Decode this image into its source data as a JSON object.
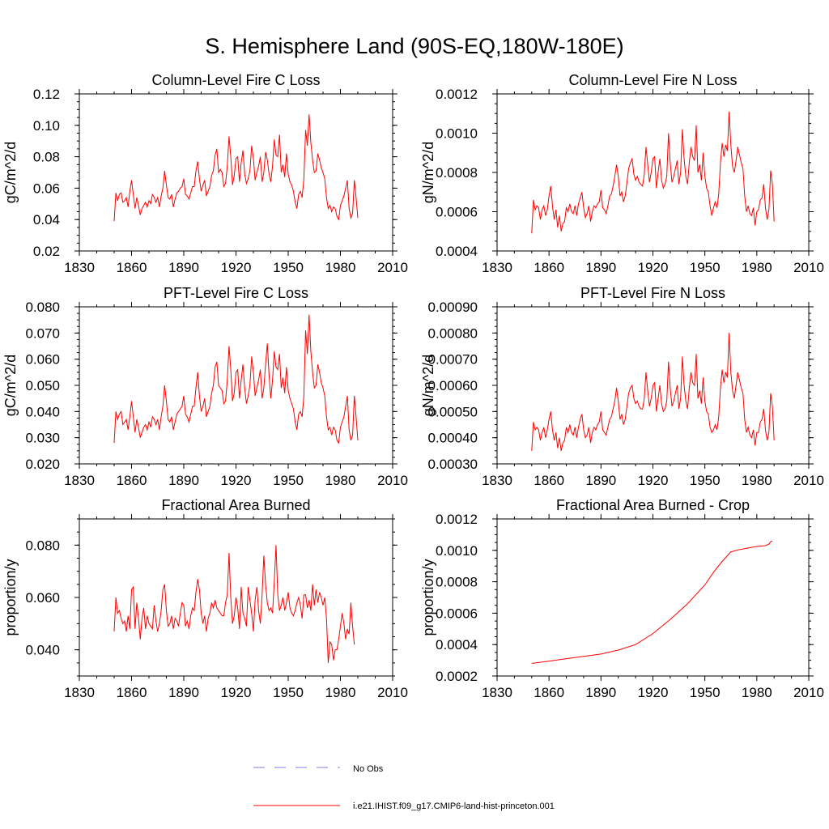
{
  "figure": {
    "title": "S. Hemisphere Land (90S-EQ,180W-180E)"
  },
  "legend": {
    "entries": [
      {
        "label": "No Obs",
        "color": "#7f7fdf",
        "style": "dashed"
      },
      {
        "label": "i.e21.IHIST.f09_g17.CMIP6-land-hist-princeton.001",
        "color": "#ff0000",
        "style": "solid"
      }
    ]
  },
  "chart_data": [
    {
      "type": "line",
      "title": "Column-Level Fire C Loss",
      "ylabel": "gC/m^2/d",
      "xlabel": "",
      "xlim": [
        1830,
        2010
      ],
      "ylim": [
        0.02,
        0.12
      ],
      "xticks": [
        "1830",
        "1860",
        "1890",
        "1920",
        "1950",
        "1980",
        "2010"
      ],
      "yticks": [
        "0.02",
        "0.04",
        "0.06",
        "0.08",
        "0.10",
        "0.12"
      ],
      "series": [
        {
          "color": "#ff0000",
          "x_start": 1850,
          "values": [
            0.039,
            0.057,
            0.052,
            0.056,
            0.057,
            0.051,
            0.052,
            0.054,
            0.048,
            0.058,
            0.065,
            0.056,
            0.047,
            0.054,
            0.049,
            0.043,
            0.047,
            0.049,
            0.051,
            0.048,
            0.052,
            0.05,
            0.056,
            0.054,
            0.051,
            0.054,
            0.048,
            0.055,
            0.06,
            0.071,
            0.062,
            0.054,
            0.053,
            0.056,
            0.048,
            0.053,
            0.057,
            0.058,
            0.06,
            0.061,
            0.066,
            0.056,
            0.055,
            0.053,
            0.057,
            0.061,
            0.061,
            0.071,
            0.077,
            0.066,
            0.058,
            0.062,
            0.065,
            0.055,
            0.058,
            0.061,
            0.068,
            0.071,
            0.081,
            0.085,
            0.07,
            0.072,
            0.07,
            0.061,
            0.063,
            0.074,
            0.093,
            0.08,
            0.062,
            0.068,
            0.079,
            0.08,
            0.064,
            0.076,
            0.084,
            0.069,
            0.063,
            0.066,
            0.071,
            0.087,
            0.079,
            0.065,
            0.07,
            0.074,
            0.08,
            0.064,
            0.07,
            0.083,
            0.078,
            0.069,
            0.064,
            0.074,
            0.091,
            0.081,
            0.08,
            0.094,
            0.07,
            0.075,
            0.067,
            0.082,
            0.069,
            0.064,
            0.062,
            0.058,
            0.051,
            0.047,
            0.056,
            0.058,
            0.054,
            0.066,
            0.097,
            0.087,
            0.107,
            0.089,
            0.078,
            0.07,
            0.071,
            0.082,
            0.078,
            0.073,
            0.07,
            0.066,
            0.054,
            0.047,
            0.049,
            0.045,
            0.048,
            0.047,
            0.042,
            0.04,
            0.049,
            0.052,
            0.055,
            0.06,
            0.065,
            0.047,
            0.041,
            0.044,
            0.065,
            0.054,
            0.041
          ]
        }
      ]
    },
    {
      "type": "line",
      "title": "Column-Level Fire N Loss",
      "ylabel": "gN/m^2/d",
      "xlabel": "",
      "xlim": [
        1830,
        2010
      ],
      "ylim": [
        0.0004,
        0.0012
      ],
      "xticks": [
        "1830",
        "1860",
        "1890",
        "1920",
        "1950",
        "1980",
        "2010"
      ],
      "yticks": [
        "0.0004",
        "0.0006",
        "0.0008",
        "0.0010",
        "0.0012"
      ],
      "series": [
        {
          "color": "#ff0000",
          "x_start": 1850,
          "values": [
            0.00049,
            0.00066,
            0.00061,
            0.00063,
            0.00062,
            0.00056,
            0.00061,
            0.00063,
            0.00058,
            0.00061,
            0.00068,
            0.00073,
            0.00063,
            0.00056,
            0.00061,
            0.00052,
            0.00058,
            0.0005,
            0.00054,
            0.00055,
            0.00062,
            0.0006,
            0.00064,
            0.0006,
            0.00059,
            0.00063,
            0.00058,
            0.00064,
            0.00067,
            0.0007,
            0.00062,
            0.00057,
            0.00059,
            0.00063,
            0.00055,
            0.0006,
            0.00063,
            0.00062,
            0.00064,
            0.00065,
            0.00071,
            0.00062,
            0.00061,
            0.00059,
            0.00063,
            0.00068,
            0.00069,
            0.00073,
            0.00078,
            0.00084,
            0.00078,
            0.00068,
            0.0007,
            0.00065,
            0.00068,
            0.00075,
            0.00082,
            0.00085,
            0.00087,
            0.00079,
            0.00076,
            0.00078,
            0.00075,
            0.00074,
            0.00073,
            0.00079,
            0.00093,
            0.00084,
            0.00075,
            0.0008,
            0.00087,
            0.00088,
            0.00072,
            0.0008,
            0.00087,
            0.00076,
            0.00072,
            0.00074,
            0.00078,
            0.001,
            0.00085,
            0.00075,
            0.00078,
            0.00082,
            0.00086,
            0.00074,
            0.0008,
            0.00102,
            0.00087,
            0.00078,
            0.00074,
            0.00085,
            0.00093,
            0.00088,
            0.00086,
            0.00104,
            0.0008,
            0.00084,
            0.00076,
            0.0009,
            0.00078,
            0.00072,
            0.0007,
            0.00063,
            0.00058,
            0.00062,
            0.00065,
            0.00062,
            0.00069,
            0.00085,
            0.00095,
            0.00088,
            0.00094,
            0.00091,
            0.00111,
            0.00094,
            0.00083,
            0.0008,
            0.00086,
            0.00093,
            0.00089,
            0.00085,
            0.00082,
            0.00068,
            0.0006,
            0.00063,
            0.00059,
            0.00058,
            0.00062,
            0.00053,
            0.0006,
            0.00061,
            0.00066,
            0.00067,
            0.00074,
            0.00062,
            0.00056,
            0.00061,
            0.00081,
            0.00074,
            0.00055
          ]
        }
      ]
    },
    {
      "type": "line",
      "title": "PFT-Level Fire C Loss",
      "ylabel": "gC/m^2/d",
      "xlabel": "",
      "xlim": [
        1830,
        2010
      ],
      "ylim": [
        0.02,
        0.08
      ],
      "xticks": [
        "1830",
        "1860",
        "1890",
        "1920",
        "1950",
        "1980",
        "2010"
      ],
      "yticks": [
        "0.020",
        "0.030",
        "0.040",
        "0.050",
        "0.060",
        "0.070",
        "0.080"
      ],
      "series": [
        {
          "color": "#ff0000",
          "x_start": 1850,
          "values": [
            0.028,
            0.04,
            0.037,
            0.039,
            0.04,
            0.035,
            0.036,
            0.037,
            0.033,
            0.038,
            0.044,
            0.038,
            0.032,
            0.037,
            0.034,
            0.03,
            0.032,
            0.034,
            0.035,
            0.033,
            0.036,
            0.034,
            0.038,
            0.037,
            0.035,
            0.037,
            0.033,
            0.038,
            0.042,
            0.05,
            0.044,
            0.037,
            0.036,
            0.038,
            0.033,
            0.036,
            0.039,
            0.04,
            0.041,
            0.042,
            0.046,
            0.039,
            0.038,
            0.036,
            0.039,
            0.042,
            0.042,
            0.049,
            0.055,
            0.046,
            0.04,
            0.042,
            0.045,
            0.038,
            0.04,
            0.042,
            0.047,
            0.05,
            0.057,
            0.059,
            0.05,
            0.049,
            0.048,
            0.043,
            0.044,
            0.052,
            0.065,
            0.056,
            0.044,
            0.047,
            0.055,
            0.056,
            0.045,
            0.052,
            0.058,
            0.049,
            0.043,
            0.046,
            0.05,
            0.061,
            0.055,
            0.046,
            0.049,
            0.052,
            0.056,
            0.045,
            0.049,
            0.058,
            0.066,
            0.054,
            0.045,
            0.052,
            0.063,
            0.057,
            0.056,
            0.062,
            0.049,
            0.053,
            0.047,
            0.057,
            0.048,
            0.045,
            0.043,
            0.041,
            0.036,
            0.033,
            0.039,
            0.04,
            0.038,
            0.046,
            0.071,
            0.062,
            0.077,
            0.063,
            0.055,
            0.049,
            0.05,
            0.058,
            0.055,
            0.051,
            0.049,
            0.046,
            0.038,
            0.033,
            0.034,
            0.031,
            0.034,
            0.033,
            0.029,
            0.028,
            0.034,
            0.036,
            0.038,
            0.042,
            0.046,
            0.033,
            0.029,
            0.031,
            0.046,
            0.038,
            0.029
          ]
        }
      ]
    },
    {
      "type": "line",
      "title": "PFT-Level Fire N Loss",
      "ylabel": "gN/m^2/d",
      "xlabel": "",
      "xlim": [
        1830,
        2010
      ],
      "ylim": [
        0.0003,
        0.0009
      ],
      "xticks": [
        "1830",
        "1860",
        "1890",
        "1920",
        "1950",
        "1980",
        "2010"
      ],
      "yticks": [
        "0.00030",
        "0.00040",
        "0.00050",
        "0.00060",
        "0.00070",
        "0.00080",
        "0.00090"
      ],
      "series": [
        {
          "color": "#ff0000",
          "x_start": 1850,
          "values": [
            0.00035,
            0.00046,
            0.00043,
            0.00044,
            0.00043,
            0.00039,
            0.00042,
            0.00044,
            0.0004,
            0.00043,
            0.00047,
            0.0005,
            0.00043,
            0.00039,
            0.00042,
            0.00036,
            0.0004,
            0.00035,
            0.00038,
            0.00039,
            0.00044,
            0.00042,
            0.00045,
            0.00042,
            0.00041,
            0.00044,
            0.0004,
            0.00044,
            0.00047,
            0.00049,
            0.00043,
            0.0004,
            0.00041,
            0.00044,
            0.00038,
            0.00042,
            0.00044,
            0.00043,
            0.00045,
            0.00046,
            0.0005,
            0.00043,
            0.00042,
            0.00041,
            0.00044,
            0.00047,
            0.00048,
            0.00051,
            0.00054,
            0.00059,
            0.00054,
            0.00047,
            0.00049,
            0.00045,
            0.00047,
            0.00052,
            0.00057,
            0.00059,
            0.0006,
            0.00055,
            0.00053,
            0.00054,
            0.00052,
            0.00051,
            0.00051,
            0.00055,
            0.00065,
            0.00058,
            0.00052,
            0.00055,
            0.0006,
            0.00061,
            0.0005,
            0.00055,
            0.0006,
            0.00053,
            0.0005,
            0.00051,
            0.00054,
            0.00069,
            0.00059,
            0.00052,
            0.00054,
            0.00057,
            0.0006,
            0.00051,
            0.00055,
            0.00071,
            0.0006,
            0.00054,
            0.00051,
            0.00059,
            0.00065,
            0.00061,
            0.0006,
            0.00072,
            0.00055,
            0.00058,
            0.00053,
            0.00063,
            0.00054,
            0.0005,
            0.00049,
            0.00044,
            0.00042,
            0.00043,
            0.00045,
            0.00043,
            0.00048,
            0.00059,
            0.00066,
            0.00061,
            0.00065,
            0.00063,
            0.0008,
            0.00065,
            0.00058,
            0.00055,
            0.0006,
            0.00065,
            0.00062,
            0.00059,
            0.00057,
            0.00047,
            0.00042,
            0.00044,
            0.00041,
            0.0004,
            0.00043,
            0.00037,
            0.00042,
            0.00042,
            0.00046,
            0.00047,
            0.00051,
            0.00043,
            0.00039,
            0.00042,
            0.00057,
            0.00052,
            0.00039
          ]
        }
      ]
    },
    {
      "type": "line",
      "title": "Fractional Area Burned",
      "ylabel": "proportion/y",
      "xlabel": "",
      "xlim": [
        1830,
        2010
      ],
      "ylim": [
        0.03,
        0.09
      ],
      "xticks": [
        "1830",
        "1860",
        "1890",
        "1920",
        "1950",
        "1980",
        "2010"
      ],
      "yticks": [
        "0.040",
        "0.060",
        "0.080"
      ],
      "ytick_values": [
        0.04,
        0.06,
        0.08
      ],
      "series": [
        {
          "color": "#ff0000",
          "x_start": 1850,
          "values": [
            0.047,
            0.06,
            0.054,
            0.055,
            0.052,
            0.05,
            0.051,
            0.047,
            0.053,
            0.048,
            0.063,
            0.064,
            0.048,
            0.058,
            0.052,
            0.044,
            0.052,
            0.056,
            0.048,
            0.053,
            0.05,
            0.049,
            0.048,
            0.057,
            0.051,
            0.047,
            0.05,
            0.055,
            0.063,
            0.065,
            0.055,
            0.049,
            0.05,
            0.053,
            0.048,
            0.052,
            0.051,
            0.049,
            0.054,
            0.058,
            0.057,
            0.049,
            0.051,
            0.048,
            0.053,
            0.056,
            0.055,
            0.062,
            0.067,
            0.063,
            0.054,
            0.05,
            0.053,
            0.047,
            0.052,
            0.054,
            0.058,
            0.056,
            0.059,
            0.056,
            0.055,
            0.054,
            0.053,
            0.053,
            0.058,
            0.061,
            0.077,
            0.06,
            0.05,
            0.053,
            0.06,
            0.056,
            0.048,
            0.064,
            0.054,
            0.052,
            0.049,
            0.064,
            0.059,
            0.054,
            0.047,
            0.059,
            0.064,
            0.055,
            0.05,
            0.061,
            0.076,
            0.065,
            0.058,
            0.055,
            0.056,
            0.054,
            0.066,
            0.08,
            0.061,
            0.055,
            0.057,
            0.06,
            0.055,
            0.058,
            0.062,
            0.056,
            0.054,
            0.053,
            0.055,
            0.058,
            0.06,
            0.057,
            0.052,
            0.061,
            0.061,
            0.056,
            0.059,
            0.055,
            0.065,
            0.057,
            0.063,
            0.058,
            0.062,
            0.06,
            0.057,
            0.06,
            0.052,
            0.035,
            0.043,
            0.042,
            0.036,
            0.04,
            0.04,
            0.044,
            0.049,
            0.054,
            0.05,
            0.044,
            0.048,
            0.046,
            0.058,
            0.049,
            0.042
          ]
        }
      ]
    },
    {
      "type": "line",
      "title": "Fractional Area Burned - Crop",
      "ylabel": "proportion/y",
      "xlabel": "",
      "xlim": [
        1830,
        2010
      ],
      "ylim": [
        0.0002,
        0.0012
      ],
      "xticks": [
        "1830",
        "1860",
        "1890",
        "1920",
        "1950",
        "1980",
        "2010"
      ],
      "yticks": [
        "0.0002",
        "0.0004",
        "0.0006",
        "0.0008",
        "0.0010",
        "0.0012"
      ],
      "series": [
        {
          "color": "#ff0000",
          "x": [
            1850,
            1860,
            1870,
            1880,
            1890,
            1900,
            1910,
            1920,
            1930,
            1940,
            1950,
            1955,
            1960,
            1965,
            1970,
            1975,
            1980,
            1985,
            1987,
            1988,
            1989
          ],
          "values": [
            0.00028,
            0.000295,
            0.00031,
            0.000325,
            0.00034,
            0.000365,
            0.0004,
            0.00047,
            0.00056,
            0.00066,
            0.00078,
            0.00086,
            0.00093,
            0.00099,
            0.001005,
            0.001015,
            0.001025,
            0.00103,
            0.00104,
            0.001055,
            0.00106
          ]
        }
      ]
    }
  ]
}
